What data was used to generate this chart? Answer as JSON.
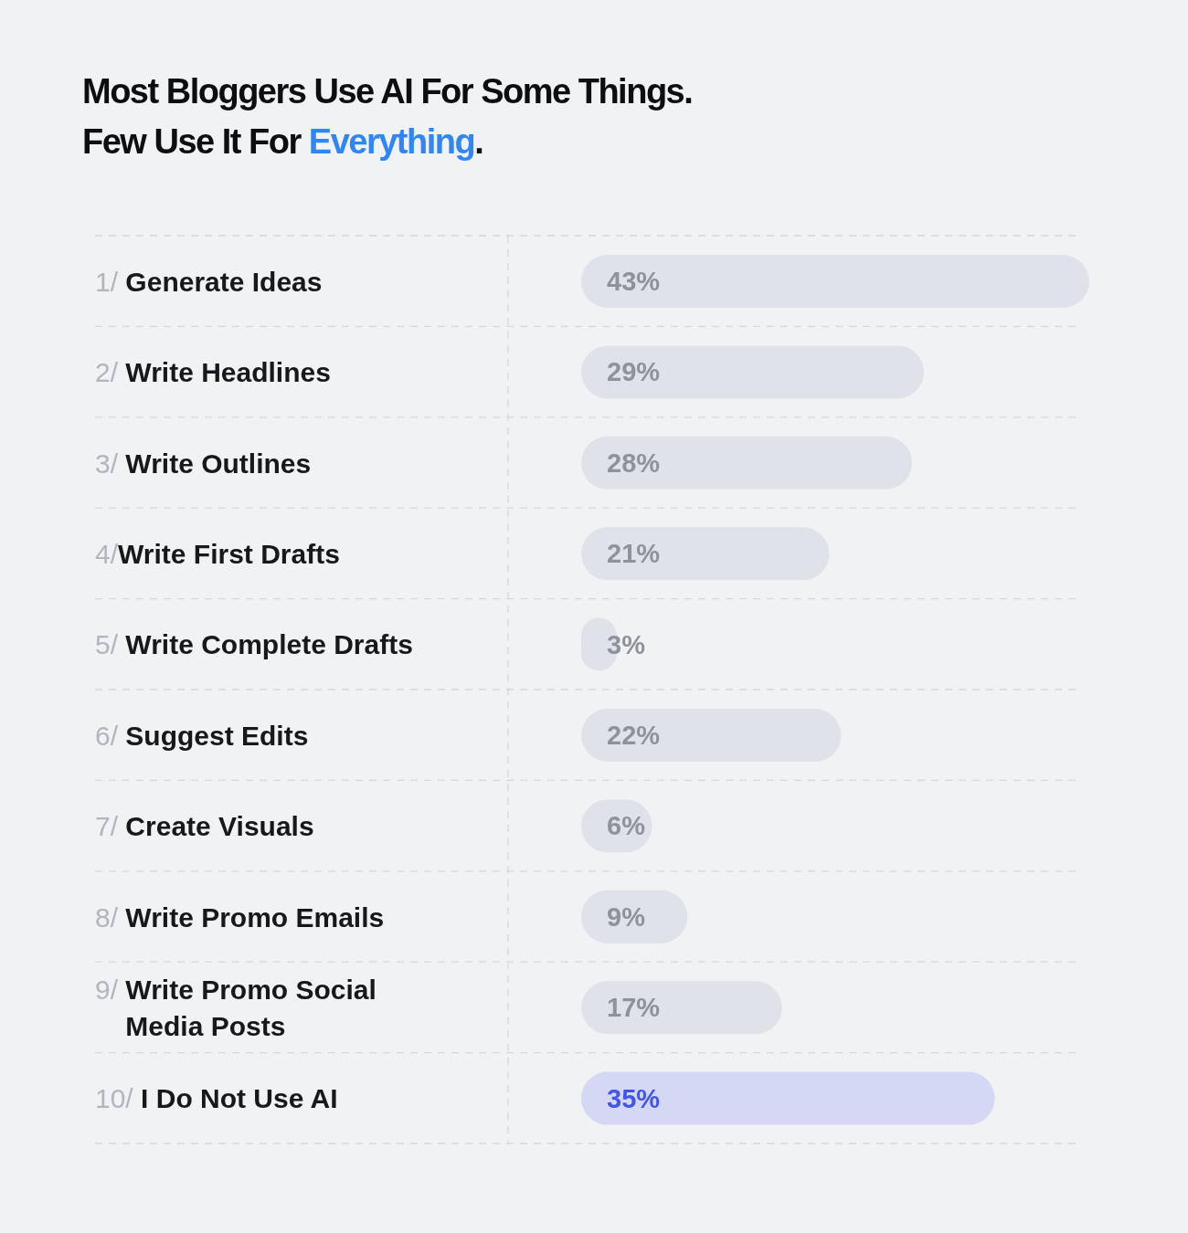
{
  "chart_data": {
    "type": "bar",
    "orientation": "horizontal",
    "title": "Most Bloggers Use AI For Some Things. Few Use It For Everything.",
    "categories": [
      "1/ Generate Ideas",
      "2/ Write Headlines",
      "3/ Write Outlines",
      "4/Write First Drafts",
      "5/ Write Complete Drafts",
      "6/ Suggest Edits",
      "7/ Create Visuals",
      "8/ Write Promo Emails",
      "9/ Write Promo Social Media Posts",
      "10/ I Do Not Use AI"
    ],
    "values": [
      43,
      29,
      28,
      21,
      3,
      22,
      6,
      9,
      17,
      35
    ],
    "colors": [
      "#dfe2e8",
      "#dfe2e8",
      "#dfe2e8",
      "#dfe2e8",
      "#dfe2e8",
      "#dfe2e8",
      "#dfe2e8",
      "#dfe2e8",
      "#dfe2e8",
      "#d4d8f5"
    ],
    "value_labels": [
      "43%",
      "29%",
      "28%",
      "21%",
      "3%",
      "22%",
      "6%",
      "9%",
      "17%",
      "35%"
    ],
    "grid": true,
    "tick_labels": "y"
  }
}
